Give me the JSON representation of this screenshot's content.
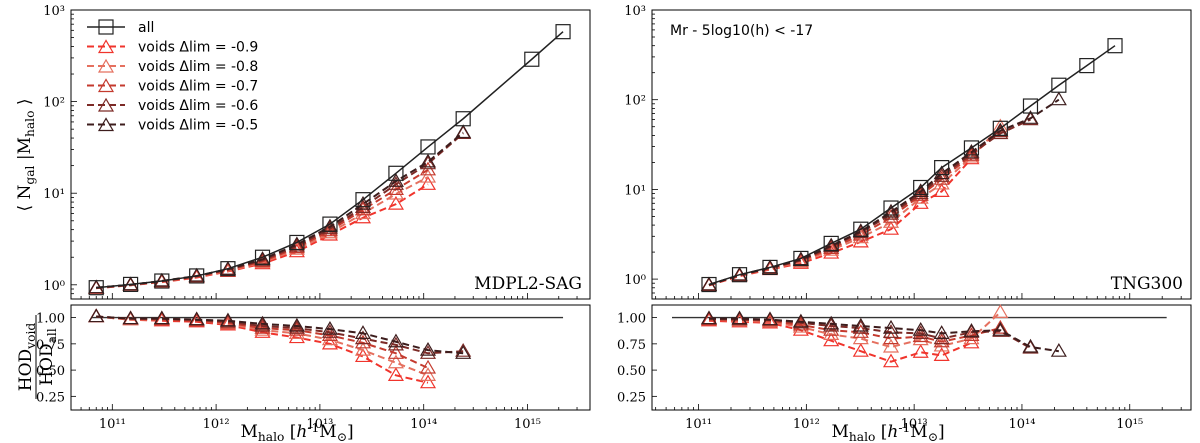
{
  "colors": {
    "all": "#222222",
    "voids": [
      "#f0342c",
      "#e5705f",
      "#c43a2e",
      "#7c2a26",
      "#3d1d1d"
    ]
  },
  "chart_data": [
    {
      "type": "line",
      "panel": "MDPL2-SAG",
      "xscale": "log",
      "yscale": "log",
      "ylabel": "⟨ Ngal |Mhalo ⟩",
      "ylim": [
        0.7,
        1000
      ],
      "xlim": [
        40000000000.0,
        4000000000000000.0
      ],
      "yticks": [
        "10⁰",
        "10¹",
        "10²",
        "10³"
      ],
      "legend": [
        {
          "label": "all"
        },
        {
          "label": "voids  Δlim = -0.9"
        },
        {
          "label": "voids  Δlim = -0.8"
        },
        {
          "label": "voids  Δlim = -0.7"
        },
        {
          "label": "voids  Δlim = -0.6"
        },
        {
          "label": "voids  Δlim = -0.5"
        }
      ],
      "series": [
        {
          "name": "all",
          "x": [
            70000000000.0,
            150000000000.0,
            300000000000.0,
            650000000000.0,
            1300000000000.0,
            2800000000000.0,
            6000000000000.0,
            12500000000000.0,
            26000000000000.0,
            54000000000000.0,
            110000000000000.0,
            240000000000000.0,
            1100000000000000.0,
            2200000000000000.0
          ],
          "y": [
            0.93,
            1.01,
            1.1,
            1.25,
            1.5,
            2.0,
            2.9,
            4.6,
            8.5,
            16.5,
            32,
            65,
            290,
            580
          ]
        },
        {
          "name": "voids Δlim = -0.9",
          "x": [
            70000000000.0,
            150000000000.0,
            300000000000.0,
            650000000000.0,
            1300000000000.0,
            2800000000000.0,
            6000000000000.0,
            12500000000000.0,
            26000000000000.0,
            54000000000000.0,
            110000000000000.0
          ],
          "y": [
            0.92,
            0.99,
            1.07,
            1.2,
            1.4,
            1.7,
            2.3,
            3.5,
            5.4,
            7.6,
            12.5
          ]
        },
        {
          "name": "voids Δlim = -0.8",
          "x": [
            70000000000.0,
            150000000000.0,
            300000000000.0,
            650000000000.0,
            1300000000000.0,
            2800000000000.0,
            6000000000000.0,
            12500000000000.0,
            26000000000000.0,
            54000000000000.0,
            110000000000000.0
          ],
          "y": [
            0.92,
            0.99,
            1.08,
            1.22,
            1.42,
            1.75,
            2.45,
            3.7,
            6.0,
            9.8,
            15
          ]
        },
        {
          "name": "voids Δlim = -0.7",
          "x": [
            70000000000.0,
            150000000000.0,
            300000000000.0,
            650000000000.0,
            1300000000000.0,
            2800000000000.0,
            6000000000000.0,
            12500000000000.0,
            26000000000000.0,
            54000000000000.0,
            110000000000000.0
          ],
          "y": [
            0.92,
            1.0,
            1.09,
            1.23,
            1.45,
            1.8,
            2.55,
            3.9,
            6.6,
            11,
            18
          ]
        },
        {
          "name": "voids Δlim = -0.6",
          "x": [
            70000000000.0,
            150000000000.0,
            300000000000.0,
            650000000000.0,
            1300000000000.0,
            2800000000000.0,
            6000000000000.0,
            12500000000000.0,
            26000000000000.0,
            54000000000000.0,
            110000000000000.0,
            240000000000000.0
          ],
          "y": [
            0.93,
            1.0,
            1.1,
            1.24,
            1.47,
            1.85,
            2.65,
            4.1,
            7.0,
            12.5,
            21,
            45
          ]
        },
        {
          "name": "voids Δlim = -0.5",
          "x": [
            70000000000.0,
            150000000000.0,
            300000000000.0,
            650000000000.0,
            1300000000000.0,
            2800000000000.0,
            6000000000000.0,
            12500000000000.0,
            26000000000000.0,
            54000000000000.0,
            110000000000000.0,
            240000000000000.0
          ],
          "y": [
            0.93,
            1.0,
            1.1,
            1.25,
            1.48,
            1.9,
            2.75,
            4.3,
            7.6,
            13.5,
            22,
            46
          ]
        }
      ]
    },
    {
      "type": "line",
      "panel": "TNG300",
      "xscale": "log",
      "yscale": "log",
      "ylim": [
        0.6,
        1000
      ],
      "xlim": [
        37000000000.0,
        3700000000000000.0
      ],
      "annotation": "Mr - 5log10(h) < -17",
      "yticks": [
        "10⁰",
        "10¹",
        "10²",
        "10³"
      ],
      "series": [
        {
          "name": "all",
          "x": [
            125000000000.0,
            240000000000.0,
            460000000000.0,
            890000000000.0,
            1700000000000.0,
            3200000000000.0,
            6100000000000.0,
            11500000000000.0,
            18000000000000.0,
            34000000000000.0,
            63000000000000.0,
            120000000000000.0,
            220000000000000.0,
            400000000000000.0,
            730000000000000.0
          ],
          "y": [
            0.87,
            1.12,
            1.35,
            1.7,
            2.5,
            3.6,
            6.2,
            10.5,
            17.5,
            29,
            48,
            85,
            145,
            240,
            400
          ]
        },
        {
          "name": "voids Δlim = -0.9",
          "x": [
            125000000000.0,
            240000000000.0,
            460000000000.0,
            890000000000.0,
            1700000000000.0,
            3200000000000.0,
            6100000000000.0,
            11500000000000.0,
            18000000000000.0,
            34000000000000.0
          ],
          "y": [
            0.85,
            1.08,
            1.28,
            1.5,
            1.95,
            2.6,
            3.6,
            7.0,
            9.5,
            22
          ]
        },
        {
          "name": "voids Δlim = -0.8",
          "x": [
            125000000000.0,
            240000000000.0,
            460000000000.0,
            890000000000.0,
            1700000000000.0,
            3200000000000.0,
            6100000000000.0,
            11500000000000.0,
            18000000000000.0,
            34000000000000.0,
            63000000000000.0
          ],
          "y": [
            0.86,
            1.1,
            1.3,
            1.55,
            2.1,
            2.9,
            4.3,
            8.0,
            11.5,
            23,
            50
          ]
        },
        {
          "name": "voids Δlim = -0.7",
          "x": [
            125000000000.0,
            240000000000.0,
            460000000000.0,
            890000000000.0,
            1700000000000.0,
            3200000000000.0,
            6100000000000.0,
            11500000000000.0,
            18000000000000.0,
            34000000000000.0,
            63000000000000.0
          ],
          "y": [
            0.86,
            1.1,
            1.32,
            1.6,
            2.2,
            3.1,
            4.9,
            8.6,
            13,
            24,
            44
          ]
        },
        {
          "name": "voids Δlim = -0.6",
          "x": [
            125000000000.0,
            240000000000.0,
            460000000000.0,
            890000000000.0,
            1700000000000.0,
            3200000000000.0,
            6100000000000.0,
            11500000000000.0,
            18000000000000.0,
            34000000000000.0,
            63000000000000.0,
            120000000000000.0
          ],
          "y": [
            0.86,
            1.11,
            1.33,
            1.62,
            2.3,
            3.3,
            5.3,
            9.0,
            14,
            25,
            42,
            60
          ]
        },
        {
          "name": "voids Δlim = -0.5",
          "x": [
            125000000000.0,
            240000000000.0,
            460000000000.0,
            890000000000.0,
            1700000000000.0,
            3200000000000.0,
            6100000000000.0,
            11500000000000.0,
            18000000000000.0,
            34000000000000.0,
            63000000000000.0,
            120000000000000.0,
            220000000000000.0
          ],
          "y": [
            0.86,
            1.11,
            1.34,
            1.65,
            2.35,
            3.4,
            5.6,
            9.5,
            15,
            26,
            45,
            62,
            100
          ]
        }
      ]
    },
    {
      "type": "line",
      "panel": "MDPL2-SAG ratio",
      "xscale": "log",
      "ylabel": "HODvoid / HODall",
      "xlabel": "Mhalo [h-1M⊙]",
      "ylim": [
        0.12,
        1.12
      ],
      "xlim": [
        40000000000.0,
        4000000000000000.0
      ],
      "yticks": [
        "0.25",
        "0.50",
        "0.75",
        "1.00"
      ],
      "xticks": [
        "10¹¹",
        "10¹²",
        "10¹³",
        "10¹⁴",
        "10¹⁵"
      ],
      "reference": 1.0,
      "series": [
        {
          "name": "voids Δlim = -0.9",
          "x": [
            70000000000.0,
            150000000000.0,
            300000000000.0,
            650000000000.0,
            1300000000000.0,
            2800000000000.0,
            6000000000000.0,
            12500000000000.0,
            26000000000000.0,
            54000000000000.0,
            110000000000000.0
          ],
          "y": [
            1.01,
            0.98,
            0.97,
            0.96,
            0.93,
            0.86,
            0.81,
            0.75,
            0.63,
            0.45,
            0.38
          ]
        },
        {
          "name": "voids Δlim = -0.8",
          "x": [
            70000000000.0,
            150000000000.0,
            300000000000.0,
            650000000000.0,
            1300000000000.0,
            2800000000000.0,
            6000000000000.0,
            12500000000000.0,
            26000000000000.0,
            54000000000000.0,
            110000000000000.0
          ],
          "y": [
            1.01,
            0.98,
            0.98,
            0.97,
            0.94,
            0.88,
            0.85,
            0.79,
            0.69,
            0.57,
            0.45
          ]
        },
        {
          "name": "voids Δlim = -0.7",
          "x": [
            70000000000.0,
            150000000000.0,
            300000000000.0,
            650000000000.0,
            1300000000000.0,
            2800000000000.0,
            6000000000000.0,
            12500000000000.0,
            26000000000000.0,
            54000000000000.0,
            110000000000000.0
          ],
          "y": [
            1.01,
            0.99,
            0.98,
            0.97,
            0.95,
            0.9,
            0.88,
            0.83,
            0.76,
            0.66,
            0.52
          ]
        },
        {
          "name": "voids Δlim = -0.6",
          "x": [
            70000000000.0,
            150000000000.0,
            300000000000.0,
            650000000000.0,
            1300000000000.0,
            2800000000000.0,
            6000000000000.0,
            12500000000000.0,
            26000000000000.0,
            54000000000000.0,
            110000000000000.0,
            240000000000000.0
          ],
          "y": [
            1.01,
            0.99,
            0.99,
            0.98,
            0.96,
            0.92,
            0.9,
            0.86,
            0.8,
            0.74,
            0.66,
            0.68
          ]
        },
        {
          "name": "voids Δlim = -0.5",
          "x": [
            70000000000.0,
            150000000000.0,
            300000000000.0,
            650000000000.0,
            1300000000000.0,
            2800000000000.0,
            6000000000000.0,
            12500000000000.0,
            26000000000000.0,
            54000000000000.0,
            110000000000000.0,
            240000000000000.0
          ],
          "y": [
            1.01,
            0.99,
            0.99,
            0.98,
            0.97,
            0.94,
            0.92,
            0.89,
            0.85,
            0.77,
            0.69,
            0.66
          ]
        }
      ]
    },
    {
      "type": "line",
      "panel": "TNG300 ratio",
      "xscale": "log",
      "xlabel": "Mhalo [h-1M⊙]",
      "ylim": [
        0.12,
        1.12
      ],
      "xlim": [
        37000000000.0,
        3700000000000000.0
      ],
      "yticks": [
        "0.25",
        "0.50",
        "0.75",
        "1.00"
      ],
      "xticks": [
        "10¹¹",
        "10¹²",
        "10¹³",
        "10¹⁴",
        "10¹⁵"
      ],
      "reference": 1.0,
      "series": [
        {
          "name": "voids Δlim = -0.9",
          "x": [
            125000000000.0,
            240000000000.0,
            460000000000.0,
            890000000000.0,
            1700000000000.0,
            3200000000000.0,
            6100000000000.0,
            11500000000000.0,
            18000000000000.0,
            34000000000000.0
          ],
          "y": [
            0.97,
            0.96,
            0.95,
            0.88,
            0.78,
            0.68,
            0.58,
            0.67,
            0.64,
            0.76
          ]
        },
        {
          "name": "voids Δlim = -0.8",
          "x": [
            125000000000.0,
            240000000000.0,
            460000000000.0,
            890000000000.0,
            1700000000000.0,
            3200000000000.0,
            6100000000000.0,
            11500000000000.0,
            18000000000000.0,
            34000000000000.0,
            63000000000000.0
          ],
          "y": [
            0.98,
            0.97,
            0.96,
            0.91,
            0.84,
            0.8,
            0.72,
            0.79,
            0.73,
            0.8,
            1.05
          ]
        },
        {
          "name": "voids Δlim = -0.7",
          "x": [
            125000000000.0,
            240000000000.0,
            460000000000.0,
            890000000000.0,
            1700000000000.0,
            3200000000000.0,
            6100000000000.0,
            11500000000000.0,
            18000000000000.0,
            34000000000000.0,
            63000000000000.0
          ],
          "y": [
            0.98,
            0.98,
            0.97,
            0.93,
            0.88,
            0.86,
            0.8,
            0.82,
            0.77,
            0.83,
            0.9
          ]
        },
        {
          "name": "voids Δlim = -0.6",
          "x": [
            125000000000.0,
            240000000000.0,
            460000000000.0,
            890000000000.0,
            1700000000000.0,
            3200000000000.0,
            6100000000000.0,
            11500000000000.0,
            18000000000000.0,
            34000000000000.0,
            63000000000000.0,
            120000000000000.0
          ],
          "y": [
            0.99,
            0.98,
            0.98,
            0.95,
            0.92,
            0.9,
            0.86,
            0.85,
            0.8,
            0.86,
            0.87,
            0.71
          ]
        },
        {
          "name": "voids Δlim = -0.5",
          "x": [
            125000000000.0,
            240000000000.0,
            460000000000.0,
            890000000000.0,
            1700000000000.0,
            3200000000000.0,
            6100000000000.0,
            11500000000000.0,
            18000000000000.0,
            34000000000000.0,
            63000000000000.0,
            120000000000000.0,
            220000000000000.0
          ],
          "y": [
            0.99,
            0.99,
            0.98,
            0.96,
            0.94,
            0.92,
            0.9,
            0.88,
            0.85,
            0.87,
            0.88,
            0.72,
            0.68
          ]
        }
      ]
    }
  ]
}
